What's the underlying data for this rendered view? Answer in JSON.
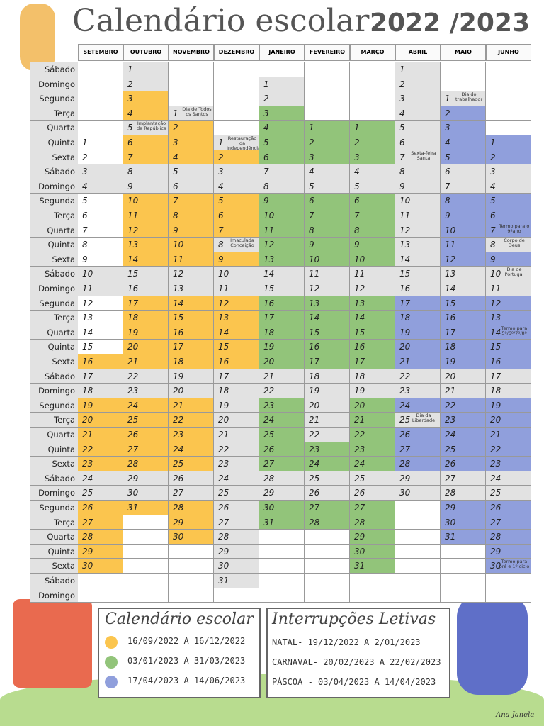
{
  "title": "Calendário escolar",
  "year": "2022 /2023",
  "palette": {
    "w": "#ffffff",
    "s": "#e2e2e2",
    "y": "#fbc54e",
    "v": "#92c47a",
    "a": "#909fdc"
  },
  "weekdays": [
    "Sábado",
    "Domingo",
    "Segunda",
    "Terça",
    "Quarta",
    "Quinta",
    "Sexta",
    "Sábado",
    "Domingo",
    "Segunda",
    "Terça",
    "Quarta",
    "Quinta",
    "Sexta",
    "Sábado",
    "Domingo",
    "Segunda",
    "Terça",
    "Quarta",
    "Quinta",
    "Sexta",
    "Sábado",
    "Domingo",
    "Segunda",
    "Terça",
    "Quarta",
    "Quinta",
    "Sexta",
    "Sábado",
    "Domingo",
    "Segunda",
    "Terça",
    "Quarta",
    "Quinta",
    "Sexta",
    "Sábado",
    "Domingo"
  ],
  "months": [
    {
      "name": "SETEMBRO",
      "fills": "wwwwwwwsswwwwwsswwwwyssyyyyyssyyyyyww",
      "days": [
        null,
        null,
        null,
        null,
        null,
        1,
        2,
        3,
        4,
        5,
        6,
        7,
        8,
        9,
        10,
        11,
        12,
        13,
        14,
        15,
        16,
        17,
        18,
        19,
        20,
        21,
        22,
        23,
        24,
        25,
        26,
        27,
        28,
        29,
        30,
        null,
        null
      ]
    },
    {
      "name": "OUTUBRO",
      "fills": "ssyysyyssyyyyyssyyyyyssyyyyyssywwwwww",
      "days": [
        1,
        2,
        3,
        4,
        {
          "day": 5,
          "note": "Implantação da República"
        },
        6,
        7,
        8,
        9,
        10,
        11,
        12,
        13,
        14,
        15,
        16,
        17,
        18,
        19,
        20,
        21,
        22,
        23,
        24,
        25,
        26,
        27,
        28,
        29,
        30,
        31,
        null,
        null,
        null,
        null,
        null,
        null
      ]
    },
    {
      "name": "NOVEMBRO",
      "fills": "wwwsyyyssyyyyyssyyyyyssyyyyyssyyywwww",
      "days": [
        null,
        null,
        null,
        {
          "day": 1,
          "note": "Dia de Todos os Santos"
        },
        2,
        3,
        4,
        5,
        6,
        7,
        8,
        9,
        10,
        11,
        12,
        13,
        14,
        15,
        16,
        17,
        18,
        19,
        20,
        21,
        22,
        23,
        24,
        25,
        26,
        27,
        28,
        29,
        30,
        null,
        null,
        null,
        null
      ]
    },
    {
      "name": "DEZEMBRO",
      "fills": "wwwwwsyssyyysyssyyyyysssssssssssssssw",
      "days": [
        null,
        null,
        null,
        null,
        null,
        {
          "day": 1,
          "note": "Restauração da Independência"
        },
        2,
        3,
        4,
        5,
        6,
        7,
        {
          "day": 8,
          "note": "Imaculada Conceição"
        },
        9,
        10,
        11,
        12,
        13,
        14,
        15,
        16,
        17,
        18,
        19,
        20,
        21,
        22,
        23,
        24,
        25,
        26,
        27,
        28,
        29,
        30,
        31,
        null
      ]
    },
    {
      "name": "JANEIRO",
      "fills": "wssvvvvssvvvvvssvvvvvssvvvvvssvvwwwww",
      "days": [
        null,
        1,
        2,
        3,
        4,
        5,
        6,
        7,
        8,
        9,
        10,
        11,
        12,
        13,
        14,
        15,
        16,
        17,
        18,
        19,
        20,
        21,
        22,
        23,
        24,
        25,
        26,
        27,
        28,
        29,
        30,
        31,
        null,
        null,
        null,
        null,
        null
      ]
    },
    {
      "name": "FEVEREIRO",
      "fills": "wwwwvvvssvvvvvssvvvvvsssssvvssvvwwwww",
      "days": [
        null,
        null,
        null,
        null,
        1,
        2,
        3,
        4,
        5,
        6,
        7,
        8,
        9,
        10,
        11,
        12,
        13,
        14,
        15,
        16,
        17,
        18,
        19,
        20,
        21,
        22,
        23,
        24,
        25,
        26,
        27,
        28,
        null,
        null,
        null,
        null,
        null
      ]
    },
    {
      "name": "MARÇO",
      "fills": "wwwwvvvssvvvvvssvvvvvssvvvvvssvvvvvww",
      "days": [
        null,
        null,
        null,
        null,
        1,
        2,
        3,
        4,
        5,
        6,
        7,
        8,
        9,
        10,
        11,
        12,
        13,
        14,
        15,
        16,
        17,
        18,
        19,
        20,
        21,
        22,
        23,
        24,
        25,
        26,
        27,
        28,
        29,
        30,
        31,
        null,
        null
      ]
    },
    {
      "name": "ABRIL",
      "fills": "ssssssssssssssssaaaaassasaaasswwwwwww",
      "days": [
        1,
        2,
        3,
        4,
        5,
        6,
        {
          "day": 7,
          "note": "Sexta-feira Santa"
        },
        8,
        9,
        10,
        11,
        12,
        13,
        14,
        15,
        16,
        17,
        18,
        19,
        20,
        21,
        22,
        23,
        24,
        {
          "day": 25,
          "note": "Dia da Liberdade"
        },
        26,
        27,
        28,
        29,
        30,
        null,
        null,
        null,
        null,
        null,
        null,
        null
      ]
    },
    {
      "name": "MAIO",
      "fills": "wwsaaaassaaaaassaaaaassaaaaassaaawwww",
      "days": [
        null,
        null,
        {
          "day": 1,
          "note": "Dia do trabalhador"
        },
        2,
        3,
        4,
        5,
        6,
        7,
        8,
        9,
        10,
        11,
        12,
        13,
        14,
        15,
        16,
        17,
        18,
        19,
        20,
        21,
        22,
        23,
        24,
        25,
        26,
        27,
        28,
        29,
        30,
        31,
        null,
        null,
        null,
        null
      ]
    },
    {
      "name": "JUNHO",
      "fills": "wwwwwaassaaasassaaaaassaaaaassaaaaaww",
      "days": [
        null,
        null,
        null,
        null,
        null,
        1,
        2,
        3,
        4,
        5,
        6,
        {
          "day": 7,
          "note": "Termo para o 9ºano"
        },
        {
          "day": 8,
          "note": "Corpo de Deus"
        },
        9,
        {
          "day": 10,
          "note": "Dia de Portugal"
        },
        11,
        12,
        13,
        {
          "day": 14,
          "note": "Termo para 5º/6º/7º/8º"
        },
        15,
        16,
        17,
        18,
        19,
        20,
        21,
        22,
        23,
        24,
        25,
        26,
        27,
        28,
        29,
        {
          "day": 30,
          "note": "Termo para pré e 1º ciclo"
        },
        null,
        null
      ]
    }
  ],
  "legend": {
    "title": "Calendário escolar",
    "items": [
      {
        "text": "16/09/2022 A 16/12/2022",
        "color": "#fbc54e"
      },
      {
        "text": "03/01/2023 A 31/03/2023",
        "color": "#92c47a"
      },
      {
        "text": "17/04/2023 A 14/06/2023",
        "color": "#909fdc"
      }
    ]
  },
  "interruptions": {
    "title": "Interrupções Letivas",
    "items": [
      "NATAL- 19/12/2022 A 2/01/2023",
      "CARNAVAL- 20/02/2023 A 22/02/2023",
      "PÁSCOA - 03/04/2023 A 14/04/2023"
    ]
  },
  "signature": "Ana Janela"
}
